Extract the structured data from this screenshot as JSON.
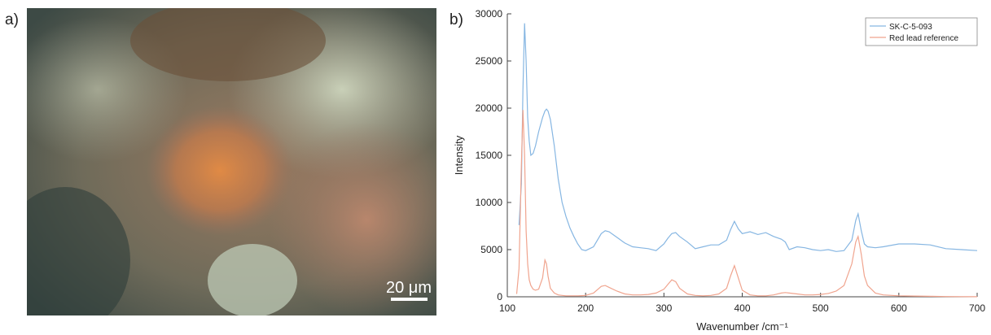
{
  "panel_a": {
    "label": "a)",
    "scale_bar": "20 μm"
  },
  "chart_data": {
    "type": "line",
    "panel_label": "b)",
    "xlabel": "Wavenumber /cm⁻¹",
    "ylabel": "Intensity",
    "xlim": [
      100,
      700
    ],
    "ylim": [
      0,
      30000
    ],
    "xticks": [
      100,
      200,
      300,
      400,
      500,
      600,
      700
    ],
    "yticks": [
      0,
      5000,
      10000,
      15000,
      20000,
      25000,
      30000
    ],
    "legend": "top-right",
    "x": [
      112,
      115,
      118,
      120,
      122,
      124,
      126,
      128,
      130,
      133,
      136,
      140,
      145,
      148,
      150,
      152,
      155,
      160,
      165,
      170,
      175,
      180,
      185,
      190,
      195,
      200,
      210,
      220,
      225,
      230,
      240,
      250,
      260,
      270,
      280,
      290,
      300,
      305,
      310,
      315,
      320,
      330,
      340,
      350,
      360,
      370,
      380,
      385,
      390,
      395,
      400,
      410,
      420,
      430,
      440,
      450,
      455,
      460,
      470,
      480,
      490,
      500,
      510,
      520,
      530,
      540,
      545,
      548,
      552,
      556,
      560,
      570,
      580,
      600,
      620,
      640,
      660,
      680,
      700
    ],
    "series": [
      {
        "name": "SK-C-5-093",
        "color": "#86b6e2",
        "values": [
          null,
          7600,
          12000,
          22000,
          29000,
          25000,
          19000,
          16500,
          15000,
          15200,
          16000,
          17500,
          19000,
          19700,
          19900,
          19700,
          18800,
          16000,
          12500,
          10000,
          8500,
          7300,
          6400,
          5600,
          5000,
          4900,
          5300,
          6700,
          7000,
          6900,
          6300,
          5700,
          5300,
          5200,
          5100,
          4900,
          5600,
          6200,
          6700,
          6800,
          6400,
          5800,
          5100,
          5300,
          5500,
          5500,
          6000,
          7100,
          8000,
          7200,
          6700,
          6900,
          6600,
          6800,
          6400,
          6100,
          5800,
          5000,
          5300,
          5200,
          5000,
          4900,
          5000,
          4800,
          4900,
          6000,
          8100,
          8800,
          7000,
          5600,
          5300,
          5200,
          5300,
          5600,
          5600,
          5500,
          5100,
          5000,
          4900
        ]
      },
      {
        "name": "Red lead reference",
        "color": "#f0a48e",
        "values": [
          300,
          3000,
          14000,
          19800,
          15000,
          7000,
          3500,
          1800,
          1200,
          800,
          700,
          800,
          2000,
          3900,
          3500,
          2200,
          900,
          400,
          200,
          150,
          100,
          100,
          100,
          100,
          120,
          150,
          400,
          1100,
          1200,
          1000,
          600,
          300,
          200,
          200,
          250,
          400,
          800,
          1300,
          1800,
          1600,
          900,
          300,
          150,
          100,
          150,
          300,
          900,
          2200,
          3300,
          2000,
          700,
          200,
          100,
          100,
          200,
          400,
          450,
          400,
          300,
          200,
          200,
          250,
          350,
          600,
          1200,
          3500,
          5800,
          6400,
          4500,
          2200,
          1200,
          400,
          200,
          100,
          80,
          50,
          30,
          20,
          10
        ]
      }
    ]
  }
}
